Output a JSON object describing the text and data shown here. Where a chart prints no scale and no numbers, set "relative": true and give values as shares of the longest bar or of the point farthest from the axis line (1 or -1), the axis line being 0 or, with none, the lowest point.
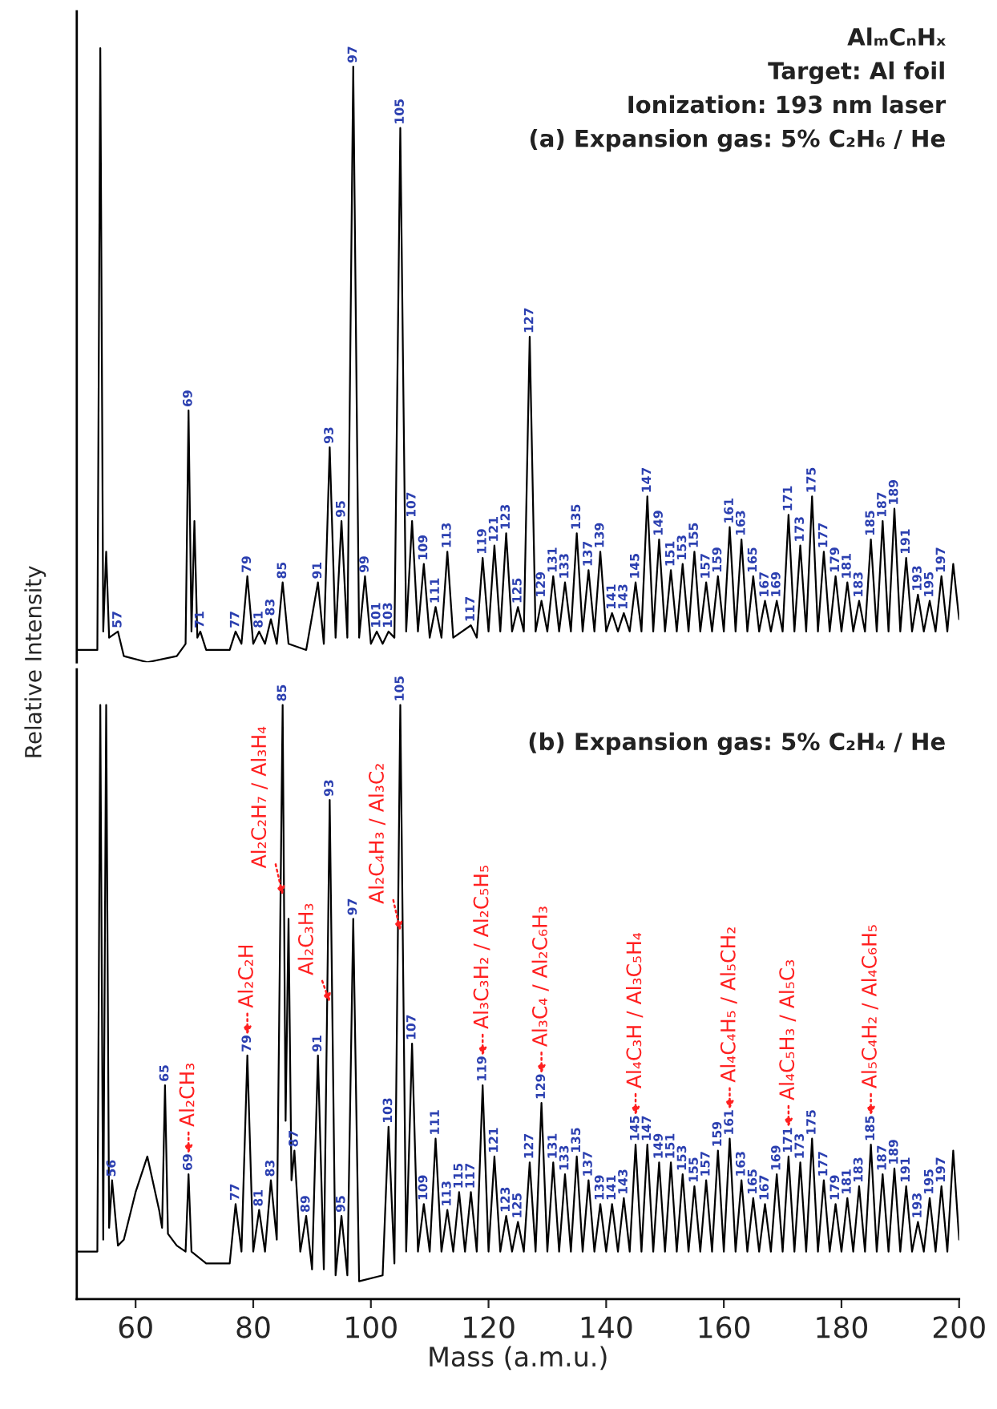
{
  "chart_data": [
    {
      "type": "line",
      "relative": true,
      "xlim": [
        50,
        200
      ],
      "tick_labels": false,
      "ylabel": "Relative Intensity",
      "annotations": [
        "AlₘCₙHₓ",
        "Target: Al foil",
        "Ionization: 193 nm laser",
        "(a) Expansion gas: 5% C₂H₆ / He",
        {
          "text": "57",
          "x": 57,
          "y": 0.05
        },
        {
          "text": "69",
          "x": 69,
          "y": 0.41
        },
        {
          "text": "71",
          "x": 71,
          "y": 0.05
        },
        {
          "text": "77",
          "x": 77,
          "y": 0.05
        },
        {
          "text": "79",
          "x": 79,
          "y": 0.14
        },
        {
          "text": "81",
          "x": 81,
          "y": 0.05
        },
        {
          "text": "83",
          "x": 83,
          "y": 0.07
        },
        {
          "text": "85",
          "x": 85,
          "y": 0.13
        },
        {
          "text": "91",
          "x": 91,
          "y": 0.13
        },
        {
          "text": "93",
          "x": 93,
          "y": 0.35
        },
        {
          "text": "95",
          "x": 95,
          "y": 0.23
        },
        {
          "text": "97",
          "x": 97,
          "y": 0.97
        },
        {
          "text": "99",
          "x": 99,
          "y": 0.14
        },
        {
          "text": "101",
          "x": 101,
          "y": 0.05
        },
        {
          "text": "103",
          "x": 103,
          "y": 0.05
        },
        {
          "text": "105",
          "x": 105,
          "y": 0.87
        },
        {
          "text": "107",
          "x": 107,
          "y": 0.23
        },
        {
          "text": "109",
          "x": 109,
          "y": 0.16
        },
        {
          "text": "111",
          "x": 111,
          "y": 0.09
        },
        {
          "text": "113",
          "x": 113,
          "y": 0.18
        },
        {
          "text": "117",
          "x": 117,
          "y": 0.06
        },
        {
          "text": "119",
          "x": 119,
          "y": 0.17
        },
        {
          "text": "121",
          "x": 121,
          "y": 0.19
        },
        {
          "text": "123",
          "x": 123,
          "y": 0.21
        },
        {
          "text": "125",
          "x": 125,
          "y": 0.09
        },
        {
          "text": "127",
          "x": 127,
          "y": 0.53
        },
        {
          "text": "129",
          "x": 129,
          "y": 0.1
        },
        {
          "text": "131",
          "x": 131,
          "y": 0.14
        },
        {
          "text": "133",
          "x": 133,
          "y": 0.13
        },
        {
          "text": "135",
          "x": 135,
          "y": 0.21
        },
        {
          "text": "137",
          "x": 137,
          "y": 0.15
        },
        {
          "text": "139",
          "x": 139,
          "y": 0.18
        },
        {
          "text": "141",
          "x": 141,
          "y": 0.08
        },
        {
          "text": "143",
          "x": 143,
          "y": 0.08
        },
        {
          "text": "145",
          "x": 145,
          "y": 0.13
        },
        {
          "text": "147",
          "x": 147,
          "y": 0.27
        },
        {
          "text": "149",
          "x": 149,
          "y": 0.2
        },
        {
          "text": "151",
          "x": 151,
          "y": 0.15
        },
        {
          "text": "153",
          "x": 153,
          "y": 0.16
        },
        {
          "text": "155",
          "x": 155,
          "y": 0.18
        },
        {
          "text": "157",
          "x": 157,
          "y": 0.13
        },
        {
          "text": "159",
          "x": 159,
          "y": 0.14
        },
        {
          "text": "161",
          "x": 161,
          "y": 0.22
        },
        {
          "text": "163",
          "x": 163,
          "y": 0.2
        },
        {
          "text": "165",
          "x": 165,
          "y": 0.14
        },
        {
          "text": "167",
          "x": 167,
          "y": 0.1
        },
        {
          "text": "169",
          "x": 169,
          "y": 0.1
        },
        {
          "text": "171",
          "x": 171,
          "y": 0.24
        },
        {
          "text": "173",
          "x": 173,
          "y": 0.19
        },
        {
          "text": "175",
          "x": 175,
          "y": 0.27
        },
        {
          "text": "177",
          "x": 177,
          "y": 0.18
        },
        {
          "text": "179",
          "x": 179,
          "y": 0.14
        },
        {
          "text": "181",
          "x": 181,
          "y": 0.13
        },
        {
          "text": "183",
          "x": 183,
          "y": 0.1
        },
        {
          "text": "185",
          "x": 185,
          "y": 0.2
        },
        {
          "text": "187",
          "x": 187,
          "y": 0.23
        },
        {
          "text": "189",
          "x": 189,
          "y": 0.25
        },
        {
          "text": "191",
          "x": 191,
          "y": 0.17
        },
        {
          "text": "193",
          "x": 193,
          "y": 0.11
        },
        {
          "text": "195",
          "x": 195,
          "y": 0.1
        },
        {
          "text": "197",
          "x": 197,
          "y": 0.14
        }
      ],
      "series": [
        {
          "color": "#000000",
          "x": [
            50,
            53.5,
            54,
            54.5,
            55,
            55.5,
            57,
            58,
            62,
            67,
            68.5,
            69,
            69.5,
            70,
            70.5,
            71,
            72,
            76,
            77,
            78,
            79,
            80,
            81,
            82,
            83,
            84,
            85,
            86,
            89,
            91,
            92,
            93,
            94,
            95,
            96,
            97,
            98,
            99,
            100,
            101,
            102,
            103,
            104,
            105,
            106,
            107,
            108,
            109,
            110,
            111,
            112,
            113,
            114,
            117,
            118,
            119,
            120,
            121,
            122,
            123,
            124,
            125,
            126,
            127,
            128,
            129,
            130,
            131,
            132,
            133,
            134,
            135,
            136,
            137,
            138,
            139,
            140,
            141,
            142,
            143,
            144,
            145,
            146,
            147,
            148,
            149,
            150,
            151,
            152,
            153,
            154,
            155,
            156,
            157,
            158,
            159,
            160,
            161,
            162,
            163,
            164,
            165,
            166,
            167,
            168,
            169,
            170,
            171,
            172,
            173,
            174,
            175,
            176,
            177,
            178,
            179,
            180,
            181,
            182,
            183,
            184,
            185,
            186,
            187,
            188,
            189,
            190,
            191,
            192,
            193,
            194,
            195,
            196,
            197,
            198,
            199,
            200
          ],
          "values": [
            0.02,
            0.02,
            1.0,
            0.05,
            0.18,
            0.04,
            0.05,
            0.01,
            0.0,
            0.01,
            0.03,
            0.41,
            0.05,
            0.23,
            0.04,
            0.05,
            0.02,
            0.02,
            0.05,
            0.03,
            0.14,
            0.03,
            0.05,
            0.03,
            0.07,
            0.03,
            0.13,
            0.03,
            0.02,
            0.13,
            0.03,
            0.35,
            0.04,
            0.23,
            0.04,
            0.97,
            0.04,
            0.14,
            0.03,
            0.05,
            0.03,
            0.05,
            0.04,
            0.87,
            0.05,
            0.23,
            0.05,
            0.16,
            0.04,
            0.09,
            0.04,
            0.18,
            0.04,
            0.06,
            0.04,
            0.17,
            0.05,
            0.19,
            0.05,
            0.21,
            0.05,
            0.09,
            0.05,
            0.53,
            0.05,
            0.1,
            0.05,
            0.14,
            0.05,
            0.13,
            0.05,
            0.21,
            0.05,
            0.15,
            0.05,
            0.18,
            0.05,
            0.08,
            0.05,
            0.08,
            0.05,
            0.13,
            0.05,
            0.27,
            0.05,
            0.2,
            0.05,
            0.15,
            0.05,
            0.16,
            0.05,
            0.18,
            0.05,
            0.13,
            0.05,
            0.14,
            0.05,
            0.22,
            0.05,
            0.2,
            0.05,
            0.14,
            0.05,
            0.1,
            0.05,
            0.1,
            0.05,
            0.24,
            0.05,
            0.19,
            0.05,
            0.27,
            0.05,
            0.18,
            0.05,
            0.14,
            0.05,
            0.13,
            0.05,
            0.1,
            0.05,
            0.2,
            0.05,
            0.23,
            0.05,
            0.25,
            0.05,
            0.17,
            0.05,
            0.11,
            0.05,
            0.1,
            0.05,
            0.14,
            0.05,
            0.16,
            0.07
          ]
        }
      ]
    },
    {
      "type": "line",
      "relative": true,
      "xlim": [
        50,
        200
      ],
      "xticks": [
        60,
        80,
        100,
        120,
        140,
        160,
        180,
        200
      ],
      "tick_labels": "x",
      "xlabel": "Mass (a.m.u.)",
      "annotations": [
        "(b) Expansion gas: 5% C₂H₄ / He",
        {
          "text": "56",
          "x": 56,
          "y": 0.2
        },
        {
          "text": "65",
          "x": 65,
          "y": 0.36
        },
        {
          "text": "69",
          "x": 69,
          "y": 0.21
        },
        {
          "text": "77",
          "x": 77,
          "y": 0.16
        },
        {
          "text": "79",
          "x": 79,
          "y": 0.41
        },
        {
          "text": "81",
          "x": 81,
          "y": 0.15
        },
        {
          "text": "83",
          "x": 83,
          "y": 0.2
        },
        {
          "text": "85",
          "x": 85,
          "y": 1.0
        },
        {
          "text": "87",
          "x": 87,
          "y": 0.25
        },
        {
          "text": "89",
          "x": 89,
          "y": 0.14
        },
        {
          "text": "91",
          "x": 91,
          "y": 0.41
        },
        {
          "text": "93",
          "x": 93,
          "y": 0.84
        },
        {
          "text": "95",
          "x": 95,
          "y": 0.14
        },
        {
          "text": "97",
          "x": 97,
          "y": 0.64
        },
        {
          "text": "103",
          "x": 103,
          "y": 0.29
        },
        {
          "text": "105",
          "x": 105,
          "y": 1.0
        },
        {
          "text": "107",
          "x": 107,
          "y": 0.43
        },
        {
          "text": "109",
          "x": 109,
          "y": 0.16
        },
        {
          "text": "111",
          "x": 111,
          "y": 0.27
        },
        {
          "text": "113",
          "x": 113,
          "y": 0.15
        },
        {
          "text": "115",
          "x": 115,
          "y": 0.18
        },
        {
          "text": "117",
          "x": 117,
          "y": 0.18
        },
        {
          "text": "119",
          "x": 119,
          "y": 0.36
        },
        {
          "text": "121",
          "x": 121,
          "y": 0.24
        },
        {
          "text": "123",
          "x": 123,
          "y": 0.14
        },
        {
          "text": "125",
          "x": 125,
          "y": 0.13
        },
        {
          "text": "127",
          "x": 127,
          "y": 0.23
        },
        {
          "text": "129",
          "x": 129,
          "y": 0.33
        },
        {
          "text": "131",
          "x": 131,
          "y": 0.23
        },
        {
          "text": "133",
          "x": 133,
          "y": 0.21
        },
        {
          "text": "135",
          "x": 135,
          "y": 0.24
        },
        {
          "text": "137",
          "x": 137,
          "y": 0.2
        },
        {
          "text": "139",
          "x": 139,
          "y": 0.16
        },
        {
          "text": "141",
          "x": 141,
          "y": 0.16
        },
        {
          "text": "143",
          "x": 143,
          "y": 0.17
        },
        {
          "text": "145",
          "x": 145,
          "y": 0.26
        },
        {
          "text": "147",
          "x": 147,
          "y": 0.26
        },
        {
          "text": "149",
          "x": 149,
          "y": 0.23
        },
        {
          "text": "151",
          "x": 151,
          "y": 0.23
        },
        {
          "text": "153",
          "x": 153,
          "y": 0.21
        },
        {
          "text": "155",
          "x": 155,
          "y": 0.19
        },
        {
          "text": "157",
          "x": 157,
          "y": 0.2
        },
        {
          "text": "159",
          "x": 159,
          "y": 0.25
        },
        {
          "text": "161",
          "x": 161,
          "y": 0.27
        },
        {
          "text": "163",
          "x": 163,
          "y": 0.2
        },
        {
          "text": "165",
          "x": 165,
          "y": 0.17
        },
        {
          "text": "167",
          "x": 167,
          "y": 0.16
        },
        {
          "text": "169",
          "x": 169,
          "y": 0.21
        },
        {
          "text": "171",
          "x": 171,
          "y": 0.24
        },
        {
          "text": "173",
          "x": 173,
          "y": 0.23
        },
        {
          "text": "175",
          "x": 175,
          "y": 0.27
        },
        {
          "text": "177",
          "x": 177,
          "y": 0.2
        },
        {
          "text": "179",
          "x": 179,
          "y": 0.16
        },
        {
          "text": "181",
          "x": 181,
          "y": 0.17
        },
        {
          "text": "183",
          "x": 183,
          "y": 0.19
        },
        {
          "text": "185",
          "x": 185,
          "y": 0.26
        },
        {
          "text": "187",
          "x": 187,
          "y": 0.21
        },
        {
          "text": "189",
          "x": 189,
          "y": 0.22
        },
        {
          "text": "191",
          "x": 191,
          "y": 0.19
        },
        {
          "text": "193",
          "x": 193,
          "y": 0.13
        },
        {
          "text": "195",
          "x": 195,
          "y": 0.17
        },
        {
          "text": "197",
          "x": 197,
          "y": 0.19
        },
        {
          "text": "Al₂CH₃",
          "x": 69,
          "y": 0.21
        },
        {
          "text": "Al₂C₂H",
          "x": 79,
          "y": 0.41
        },
        {
          "text": "Al₂C₂H₇ / Al₃H₄",
          "x": 85,
          "y": 0.68
        },
        {
          "text": "Al₂C₃H₃",
          "x": 93,
          "y": 0.5
        },
        {
          "text": "Al₂C₄H₃ / Al₃C₂",
          "x": 105,
          "y": 0.62
        },
        {
          "text": "Al₃C₃H₂ / Al₂C₅H₅",
          "x": 119,
          "y": 0.36
        },
        {
          "text": "Al₃C₄ / Al₂C₆H₃",
          "x": 129,
          "y": 0.33
        },
        {
          "text": "Al₄C₃H / Al₃C₅H₄",
          "x": 145,
          "y": 0.26
        },
        {
          "text": "Al₄C₄H₅ / Al₅CH₂",
          "x": 161,
          "y": 0.27
        },
        {
          "text": "Al₄C₅H₃ / Al₅C₃",
          "x": 171,
          "y": 0.24
        },
        {
          "text": "Al₅C₄H₂ / Al₄C₆H₅",
          "x": 185,
          "y": 0.26
        }
      ],
      "series": [
        {
          "color": "#000000",
          "x": [
            50,
            53.5,
            54,
            54.5,
            55,
            55.5,
            56,
            57,
            58,
            60,
            62,
            64,
            64.5,
            65,
            65.5,
            67,
            68.5,
            69,
            69.5,
            72,
            76,
            77,
            78,
            79,
            80,
            81,
            82,
            83,
            84,
            85,
            85.5,
            86,
            86.5,
            87,
            88,
            89,
            90,
            91,
            92,
            93,
            94,
            95,
            96,
            97,
            98,
            102,
            103,
            104,
            105,
            106,
            107,
            108,
            109,
            110,
            111,
            112,
            113,
            114,
            115,
            116,
            117,
            118,
            119,
            120,
            121,
            122,
            123,
            124,
            125,
            126,
            127,
            128,
            129,
            130,
            131,
            132,
            133,
            134,
            135,
            136,
            137,
            138,
            139,
            140,
            141,
            142,
            143,
            144,
            145,
            146,
            147,
            148,
            149,
            150,
            151,
            152,
            153,
            154,
            155,
            156,
            157,
            158,
            159,
            160,
            161,
            162,
            163,
            164,
            165,
            166,
            167,
            168,
            169,
            170,
            171,
            172,
            173,
            174,
            175,
            176,
            177,
            178,
            179,
            180,
            181,
            182,
            183,
            184,
            185,
            186,
            187,
            188,
            189,
            190,
            191,
            192,
            193,
            194,
            195,
            196,
            197,
            198,
            199,
            200
          ],
          "values": [
            0.08,
            0.08,
            1.0,
            0.1,
            1.0,
            0.12,
            0.2,
            0.09,
            0.1,
            0.18,
            0.24,
            0.15,
            0.12,
            0.36,
            0.11,
            0.09,
            0.08,
            0.21,
            0.08,
            0.06,
            0.06,
            0.16,
            0.08,
            0.41,
            0.08,
            0.15,
            0.08,
            0.2,
            0.1,
            1.0,
            0.3,
            0.64,
            0.2,
            0.25,
            0.08,
            0.14,
            0.05,
            0.41,
            0.05,
            0.84,
            0.04,
            0.14,
            0.04,
            0.64,
            0.03,
            0.04,
            0.29,
            0.06,
            1.0,
            0.08,
            0.43,
            0.08,
            0.16,
            0.08,
            0.27,
            0.08,
            0.15,
            0.08,
            0.18,
            0.08,
            0.18,
            0.08,
            0.36,
            0.08,
            0.24,
            0.08,
            0.14,
            0.08,
            0.13,
            0.08,
            0.23,
            0.08,
            0.33,
            0.08,
            0.23,
            0.08,
            0.21,
            0.08,
            0.24,
            0.08,
            0.2,
            0.08,
            0.16,
            0.08,
            0.16,
            0.08,
            0.17,
            0.08,
            0.26,
            0.08,
            0.26,
            0.08,
            0.23,
            0.08,
            0.23,
            0.08,
            0.21,
            0.08,
            0.19,
            0.08,
            0.2,
            0.08,
            0.25,
            0.08,
            0.27,
            0.08,
            0.2,
            0.08,
            0.17,
            0.08,
            0.16,
            0.08,
            0.21,
            0.08,
            0.24,
            0.08,
            0.23,
            0.08,
            0.27,
            0.08,
            0.2,
            0.08,
            0.16,
            0.08,
            0.17,
            0.08,
            0.19,
            0.08,
            0.26,
            0.08,
            0.21,
            0.08,
            0.22,
            0.08,
            0.19,
            0.08,
            0.13,
            0.08,
            0.17,
            0.08,
            0.19,
            0.08,
            0.25,
            0.1
          ]
        }
      ]
    }
  ]
}
